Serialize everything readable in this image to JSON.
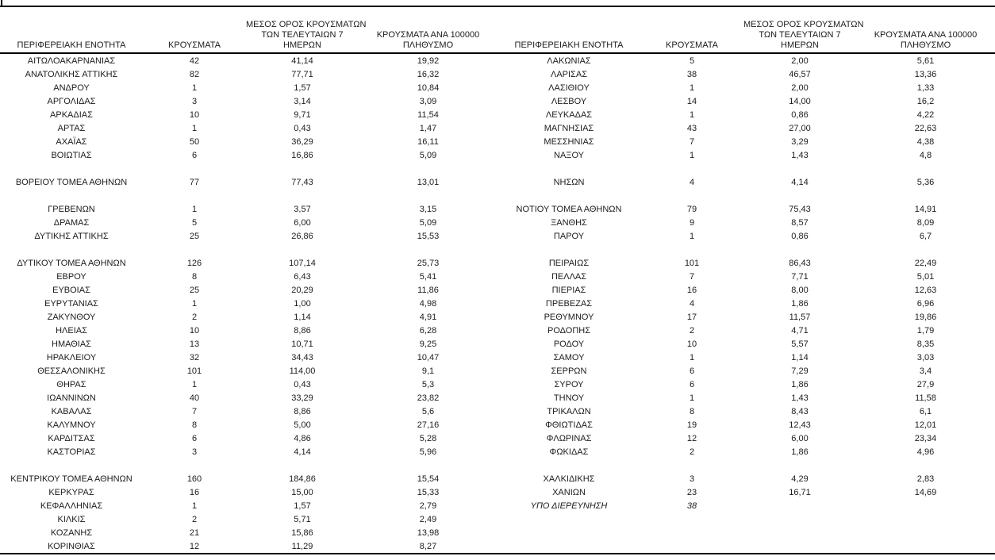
{
  "page": {
    "background_color": "#ffffff",
    "text_color": "#1c1c1c",
    "rule_color": "#000000"
  },
  "header": {
    "region": "ΠΕΡΙΦΕΡΕΙΑΚΗ ΕΝΟΤΗΤΑ",
    "cases": "ΚΡΟΥΣΜΑΤΑ",
    "avg7_line1": "ΜΕΣΟΣ ΟΡΟΣ ΚΡΟΥΣΜΑΤΩΝ",
    "avg7_line2": "ΤΩΝ ΤΕΛΕΥΤΑΙΩΝ 7",
    "avg7_line3": "ΗΜΕΡΩΝ",
    "per100k_line1": "ΚΡΟΥΣΜΑΤΑ ΑΝΑ 100000",
    "per100k_line2": "ΠΛΗΘΥΣΜΟ"
  },
  "left_table": {
    "rows": [
      {
        "region": "ΑΙΤΩΛΟΑΚΑΡΝΑΝΙΑΣ",
        "cases": "42",
        "avg7": "41,14",
        "per100k": "19,92"
      },
      {
        "region": "ΑΝΑΤΟΛΙΚΗΣ ΑΤΤΙΚΗΣ",
        "cases": "82",
        "avg7": "77,71",
        "per100k": "16,32"
      },
      {
        "region": "ΑΝΔΡΟΥ",
        "cases": "1",
        "avg7": "1,57",
        "per100k": "10,84"
      },
      {
        "region": "ΑΡΓΟΛΙΔΑΣ",
        "cases": "3",
        "avg7": "3,14",
        "per100k": "3,09"
      },
      {
        "region": "ΑΡΚΑΔΙΑΣ",
        "cases": "10",
        "avg7": "9,71",
        "per100k": "11,54"
      },
      {
        "region": "ΑΡΤΑΣ",
        "cases": "1",
        "avg7": "0,43",
        "per100k": "1,47"
      },
      {
        "region": "ΑΧΑΪΑΣ",
        "cases": "50",
        "avg7": "36,29",
        "per100k": "16,11"
      },
      {
        "region": "ΒΟΙΩΤΙΑΣ",
        "cases": "6",
        "avg7": "16,86",
        "per100k": "5,09"
      },
      {
        "blank": true
      },
      {
        "region": "ΒΟΡΕΙΟΥ ΤΟΜΕΑ ΑΘΗΝΩΝ",
        "cases": "77",
        "avg7": "77,43",
        "per100k": "13,01"
      },
      {
        "blank": true
      },
      {
        "region": "ΓΡΕΒΕΝΩΝ",
        "cases": "1",
        "avg7": "3,57",
        "per100k": "3,15"
      },
      {
        "region": "ΔΡΑΜΑΣ",
        "cases": "5",
        "avg7": "6,00",
        "per100k": "5,09"
      },
      {
        "region": "ΔΥΤΙΚΗΣ ΑΤΤΙΚΗΣ",
        "cases": "25",
        "avg7": "26,86",
        "per100k": "15,53"
      },
      {
        "blank": true
      },
      {
        "region": "ΔΥΤΙΚΟΥ ΤΟΜΕΑ ΑΘΗΝΩΝ",
        "cases": "126",
        "avg7": "107,14",
        "per100k": "25,73"
      },
      {
        "region": "ΕΒΡΟΥ",
        "cases": "8",
        "avg7": "6,43",
        "per100k": "5,41"
      },
      {
        "region": "ΕΥΒΟΙΑΣ",
        "cases": "25",
        "avg7": "20,29",
        "per100k": "11,86"
      },
      {
        "region": "ΕΥΡΥΤΑΝΙΑΣ",
        "cases": "1",
        "avg7": "1,00",
        "per100k": "4,98"
      },
      {
        "region": "ΖΑΚΥΝΘΟΥ",
        "cases": "2",
        "avg7": "1,14",
        "per100k": "4,91"
      },
      {
        "region": "ΗΛΕΙΑΣ",
        "cases": "10",
        "avg7": "8,86",
        "per100k": "6,28"
      },
      {
        "region": "ΗΜΑΘΙΑΣ",
        "cases": "13",
        "avg7": "10,71",
        "per100k": "9,25"
      },
      {
        "region": "ΗΡΑΚΛΕΙΟΥ",
        "cases": "32",
        "avg7": "34,43",
        "per100k": "10,47"
      },
      {
        "region": "ΘΕΣΣΑΛΟΝΙΚΗΣ",
        "cases": "101",
        "avg7": "114,00",
        "per100k": "9,1"
      },
      {
        "region": "ΘΗΡΑΣ",
        "cases": "1",
        "avg7": "0,43",
        "per100k": "5,3"
      },
      {
        "region": "ΙΩΑΝΝΙΝΩΝ",
        "cases": "40",
        "avg7": "33,29",
        "per100k": "23,82"
      },
      {
        "region": "ΚΑΒΑΛΑΣ",
        "cases": "7",
        "avg7": "8,86",
        "per100k": "5,6"
      },
      {
        "region": "ΚΑΛΥΜΝΟΥ",
        "cases": "8",
        "avg7": "5,00",
        "per100k": "27,16"
      },
      {
        "region": "ΚΑΡΔΙΤΣΑΣ",
        "cases": "6",
        "avg7": "4,86",
        "per100k": "5,28"
      },
      {
        "region": "ΚΑΣΤΟΡΙΑΣ",
        "cases": "3",
        "avg7": "4,14",
        "per100k": "5,96"
      },
      {
        "blank": true
      },
      {
        "region": "ΚΕΝΤΡΙΚΟΥ ΤΟΜΕΑ ΑΘΗΝΩΝ",
        "cases": "160",
        "avg7": "184,86",
        "per100k": "15,54"
      },
      {
        "region": "ΚΕΡΚΥΡΑΣ",
        "cases": "16",
        "avg7": "15,00",
        "per100k": "15,33"
      },
      {
        "region": "ΚΕΦΑΛΛΗΝΙΑΣ",
        "cases": "1",
        "avg7": "1,57",
        "per100k": "2,79"
      },
      {
        "region": "ΚΙΛΚΙΣ",
        "cases": "2",
        "avg7": "5,71",
        "per100k": "2,49"
      },
      {
        "region": "ΚΟΖΑΝΗΣ",
        "cases": "21",
        "avg7": "15,86",
        "per100k": "13,98"
      },
      {
        "region": "ΚΟΡΙΝΘΙΑΣ",
        "cases": "12",
        "avg7": "11,29",
        "per100k": "8,27"
      }
    ]
  },
  "right_table": {
    "rows": [
      {
        "region": "ΛΑΚΩΝΙΑΣ",
        "cases": "5",
        "avg7": "2,00",
        "per100k": "5,61"
      },
      {
        "region": "ΛΑΡΙΣΑΣ",
        "cases": "38",
        "avg7": "46,57",
        "per100k": "13,36"
      },
      {
        "region": "ΛΑΣΙΘΙΟΥ",
        "cases": "1",
        "avg7": "2,00",
        "per100k": "1,33"
      },
      {
        "region": "ΛΕΣΒΟΥ",
        "cases": "14",
        "avg7": "14,00",
        "per100k": "16,2"
      },
      {
        "region": "ΛΕΥΚΑΔΑΣ",
        "cases": "1",
        "avg7": "0,86",
        "per100k": "4,22"
      },
      {
        "region": "ΜΑΓΝΗΣΙΑΣ",
        "cases": "43",
        "avg7": "27,00",
        "per100k": "22,63"
      },
      {
        "region": "ΜΕΣΣΗΝΙΑΣ",
        "cases": "7",
        "avg7": "3,29",
        "per100k": "4,38"
      },
      {
        "region": "ΝΑΞΟΥ",
        "cases": "1",
        "avg7": "1,43",
        "per100k": "4,8"
      },
      {
        "blank": true
      },
      {
        "region": "ΝΗΣΩΝ",
        "cases": "4",
        "avg7": "4,14",
        "per100k": "5,36"
      },
      {
        "blank": true
      },
      {
        "region": "ΝΟΤΙΟΥ ΤΟΜΕΑ ΑΘΗΝΩΝ",
        "cases": "79",
        "avg7": "75,43",
        "per100k": "14,91"
      },
      {
        "region": "ΞΑΝΘΗΣ",
        "cases": "9",
        "avg7": "8,57",
        "per100k": "8,09"
      },
      {
        "region": "ΠΑΡΟΥ",
        "cases": "1",
        "avg7": "0,86",
        "per100k": "6,7"
      },
      {
        "blank": true
      },
      {
        "region": "ΠΕΙΡΑΙΩΣ",
        "cases": "101",
        "avg7": "86,43",
        "per100k": "22,49"
      },
      {
        "region": "ΠΕΛΛΑΣ",
        "cases": "7",
        "avg7": "7,71",
        "per100k": "5,01"
      },
      {
        "region": "ΠΙΕΡΙΑΣ",
        "cases": "16",
        "avg7": "8,00",
        "per100k": "12,63"
      },
      {
        "region": "ΠΡΕΒΕΖΑΣ",
        "cases": "4",
        "avg7": "1,86",
        "per100k": "6,96"
      },
      {
        "region": "ΡΕΘΥΜΝΟΥ",
        "cases": "17",
        "avg7": "11,57",
        "per100k": "19,86"
      },
      {
        "region": "ΡΟΔΟΠΗΣ",
        "cases": "2",
        "avg7": "4,71",
        "per100k": "1,79"
      },
      {
        "region": "ΡΟΔΟΥ",
        "cases": "10",
        "avg7": "5,57",
        "per100k": "8,35"
      },
      {
        "region": "ΣΑΜΟΥ",
        "cases": "1",
        "avg7": "1,14",
        "per100k": "3,03"
      },
      {
        "region": "ΣΕΡΡΩΝ",
        "cases": "6",
        "avg7": "7,29",
        "per100k": "3,4"
      },
      {
        "region": "ΣΥΡΟΥ",
        "cases": "6",
        "avg7": "1,86",
        "per100k": "27,9"
      },
      {
        "region": "ΤΗΝΟΥ",
        "cases": "1",
        "avg7": "1,43",
        "per100k": "11,58"
      },
      {
        "region": "ΤΡΙΚΑΛΩΝ",
        "cases": "8",
        "avg7": "8,43",
        "per100k": "6,1"
      },
      {
        "region": "ΦΘΙΩΤΙΔΑΣ",
        "cases": "19",
        "avg7": "12,43",
        "per100k": "12,01"
      },
      {
        "region": "ΦΛΩΡΙΝΑΣ",
        "cases": "12",
        "avg7": "6,00",
        "per100k": "23,34"
      },
      {
        "region": "ΦΩΚΙΔΑΣ",
        "cases": "2",
        "avg7": "1,86",
        "per100k": "4,96"
      },
      {
        "blank": true
      },
      {
        "region": "ΧΑΛΚΙΔΙΚΗΣ",
        "cases": "3",
        "avg7": "4,29",
        "per100k": "2,83"
      },
      {
        "region": "ΧΑΝΙΩΝ",
        "cases": "23",
        "avg7": "16,71",
        "per100k": "14,69"
      },
      {
        "region": "ΥΠΟ ΔΙΕΡΕΥΝΗΣΗ",
        "cases": "38",
        "avg7": "",
        "per100k": "",
        "italic": true
      },
      {
        "blank": true
      },
      {
        "blank": true
      },
      {
        "blank": true
      }
    ]
  }
}
